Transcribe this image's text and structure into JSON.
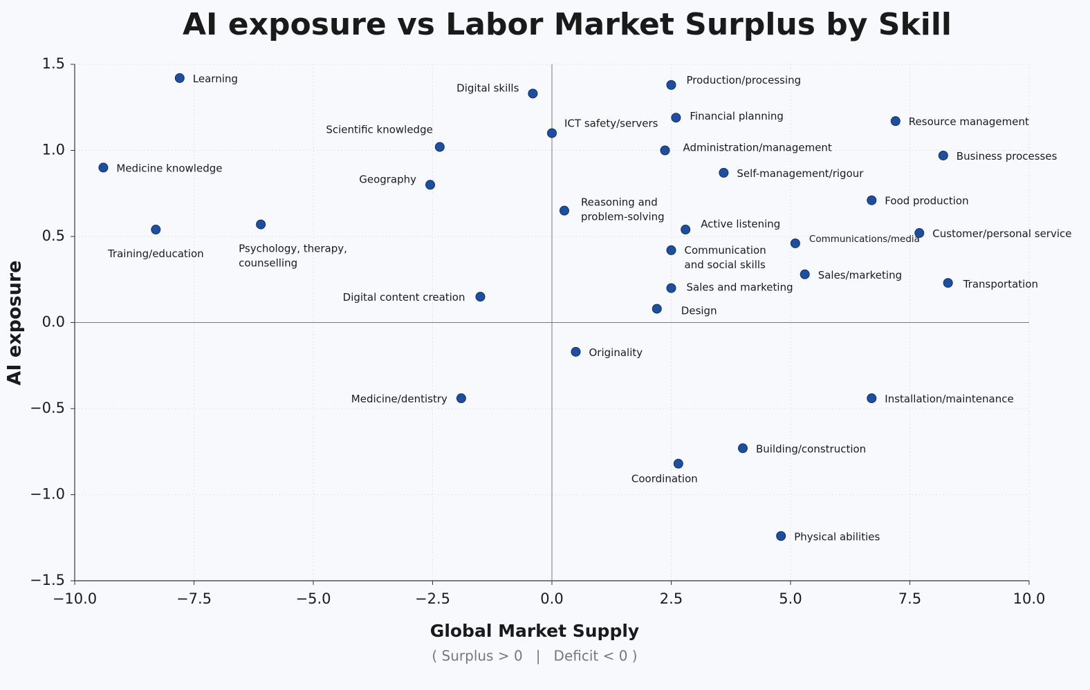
{
  "chart_data": {
    "type": "scatter",
    "title": "AI exposure vs Labor Market Surplus by Skill",
    "xlabel": "Global Market Supply",
    "xlabel_note": "( Surplus > 0   |   Deficit < 0 )",
    "ylabel": "AI exposure",
    "color": "#1f4e9c",
    "grid": true,
    "zero_lines": true,
    "xlim": [
      -10,
      10
    ],
    "ylim": [
      -1.5,
      1.5
    ],
    "xticks": [
      {
        "value": -10,
        "label": "−10.0"
      },
      {
        "value": -7.5,
        "label": "−7.5"
      },
      {
        "value": -5,
        "label": "−5.0"
      },
      {
        "value": -2.5,
        "label": "−2.5"
      },
      {
        "value": 0,
        "label": "0.0"
      },
      2.5,
      {
        "value": 5,
        "label": "5.0"
      },
      7.5,
      {
        "value": 10,
        "label": "10.0"
      }
    ],
    "yticks": [
      {
        "value": -1.5,
        "label": "−1.5"
      },
      {
        "value": -1,
        "label": "−1.0"
      },
      {
        "value": -0.5,
        "label": "−0.5"
      },
      {
        "value": 0,
        "label": "0.0"
      },
      0.5,
      {
        "value": 1,
        "label": "1.0"
      },
      1.5
    ],
    "labels": [
      "Learning",
      "Medicine knowledge",
      "Training/education",
      "Psychology, therapy,\ncounselling",
      "Scientific knowledge",
      "Geography",
      "Digital skills",
      "ICT safety/servers",
      "Digital content creation",
      "Medicine/dentistry",
      "Originality",
      "Reasoning and\nproblem-solving",
      "Production/processing",
      "Financial planning",
      "Administration/management",
      "Self-management/rigour",
      "Active listening",
      "Communication\nand social skills",
      "Sales and marketing",
      "Design",
      "Coordination",
      "Building/construction",
      "Physical abilities",
      "Communications/media",
      "Sales/marketing",
      "Food production",
      "Resource management",
      "Business processes",
      "Customer/personal service",
      "Transportation",
      "Installation/maintenance"
    ],
    "x": [
      -7.8,
      -9.4,
      -8.3,
      -6.1,
      -2.35,
      -2.55,
      -0.4,
      0,
      -1.5,
      -1.9,
      0.5,
      0.26,
      2.5,
      2.6,
      2.37,
      3.6,
      2.8,
      2.5,
      2.5,
      2.2,
      2.65,
      4.0,
      4.8,
      5.1,
      5.3,
      6.7,
      7.2,
      8.2,
      7.7,
      8.3,
      6.7
    ],
    "values": [
      1.42,
      0.9,
      0.54,
      0.57,
      1.02,
      0.8,
      1.33,
      1.1,
      0.15,
      -0.44,
      -0.17,
      0.65,
      1.38,
      1.19,
      1.0,
      0.87,
      0.54,
      0.42,
      0.2,
      0.08,
      -0.82,
      -0.73,
      -1.24,
      0.46,
      0.28,
      0.71,
      1.17,
      0.97,
      0.52,
      0.23,
      -0.44
    ]
  }
}
